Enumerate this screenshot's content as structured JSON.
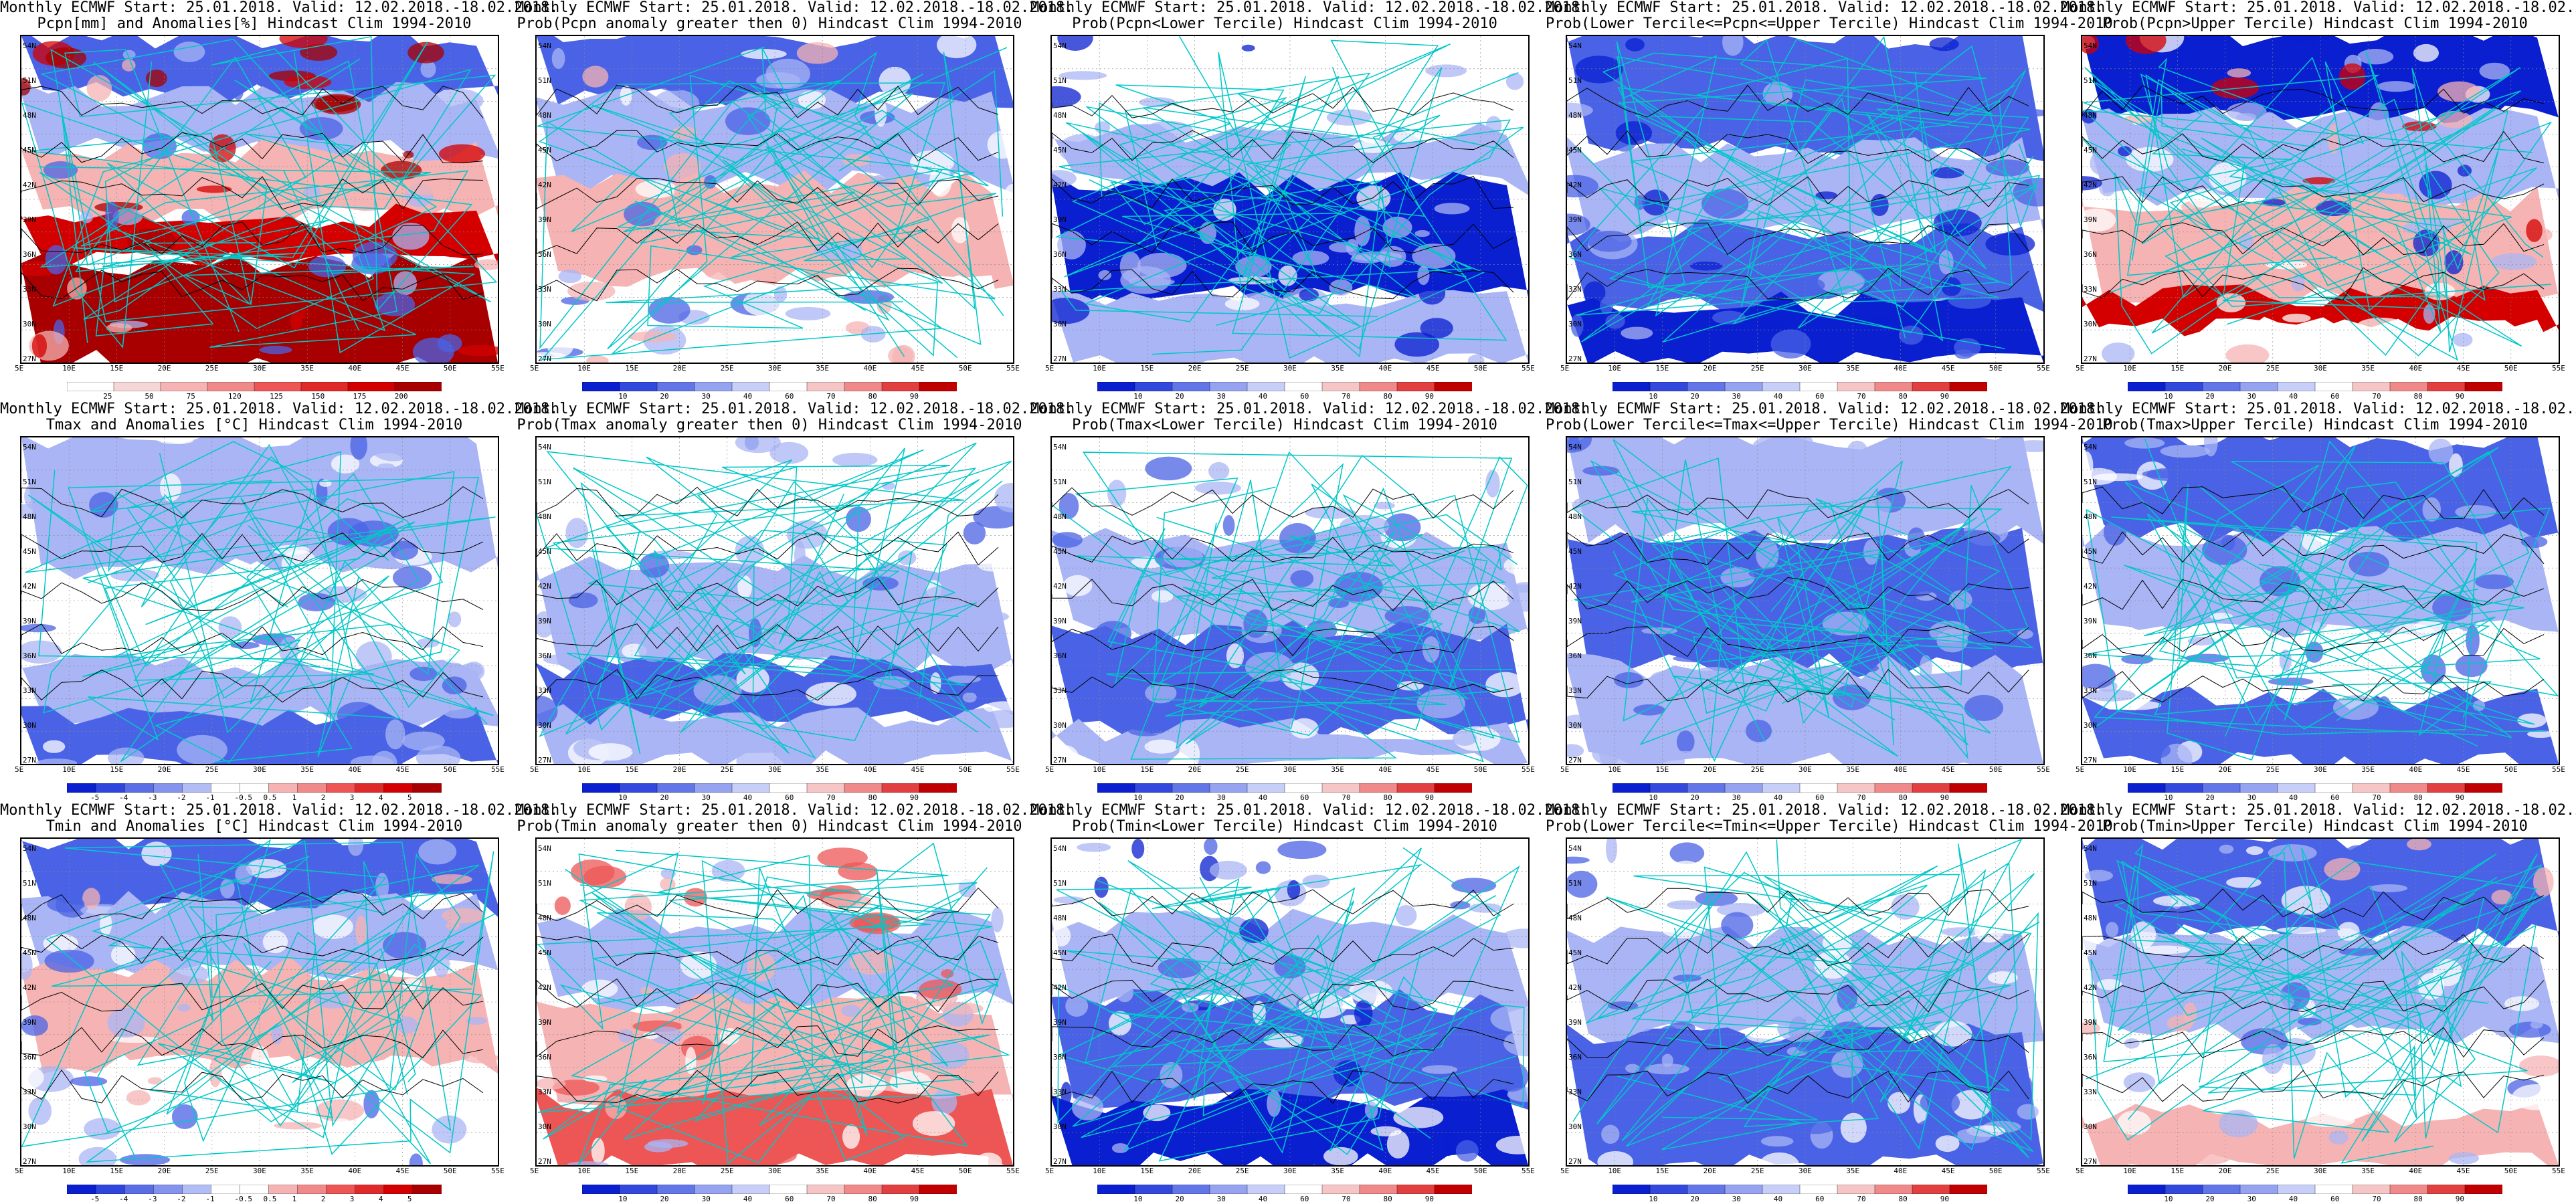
{
  "header": "Monthly ECMWF Start: 25.01.2018. Valid: 12.02.2018.-18.02.2018.",
  "lat_labels": [
    "54N",
    "51N",
    "48N",
    "45N",
    "42N",
    "39N",
    "36N",
    "33N",
    "30N",
    "27N"
  ],
  "lon_labels": [
    "5E",
    "10E",
    "15E",
    "20E",
    "25E",
    "30E",
    "35E",
    "40E",
    "45E",
    "50E",
    "55E"
  ],
  "anomaly_ticks": [
    "-5",
    "-4",
    "-3",
    "-2",
    "-1",
    "-0.5",
    "0.5",
    "1",
    "2",
    "3",
    "4",
    "5"
  ],
  "pcpn_ticks": [
    "25",
    "50",
    "75",
    "120",
    "125",
    "150",
    "175",
    "200"
  ],
  "prob_ticks": [
    "10",
    "20",
    "30",
    "40",
    "60",
    "70",
    "80",
    "90"
  ],
  "colors": {
    "deep_blue": "#0a1fd0",
    "mid_blue": "#4a63e6",
    "light_blue": "#a9b5f4",
    "white": "#ffffff",
    "light_red": "#f6b3b3",
    "mid_red": "#ee5555",
    "deep_red": "#d40000",
    "dark_red": "#a80000",
    "coast": "#00c8c8",
    "contour": "#000000"
  },
  "panels": [
    {
      "subtitle": "Pcpn[mm] and Anomalies[%] Hindcast Clim 1994-2010",
      "scale": "pcpn",
      "pattern": "pcpn_anom"
    },
    {
      "subtitle": "Prob(Pcpn anomaly greater then 0) Hindcast Clim 1994-2010",
      "scale": "prob",
      "pattern": "pcpn_gt0"
    },
    {
      "subtitle": "Prob(Pcpn<Lower Tercile) Hindcast Clim 1994-2010",
      "scale": "prob",
      "pattern": "pcpn_lower"
    },
    {
      "subtitle": "Prob(Lower Tercile<=Pcpn<=Upper Tercile) Hindcast Clim 1994-2010",
      "scale": "prob",
      "pattern": "pcpn_middle"
    },
    {
      "subtitle": "Prob(Pcpn>Upper Tercile) Hindcast Clim 1994-2010",
      "scale": "prob",
      "pattern": "pcpn_upper"
    },
    {
      "subtitle": "Tmax and Anomalies [°C] Hindcast Clim 1994-2010",
      "scale": "anomaly",
      "pattern": "tmax_anom"
    },
    {
      "subtitle": "Prob(Tmax anomaly greater then 0) Hindcast Clim 1994-2010",
      "scale": "prob",
      "pattern": "tmax_gt0"
    },
    {
      "subtitle": "Prob(Tmax<Lower Tercile) Hindcast Clim 1994-2010",
      "scale": "prob",
      "pattern": "tmax_lower"
    },
    {
      "subtitle": "Prob(Lower Tercile<=Tmax<=Upper Tercile) Hindcast Clim 1994-2010",
      "scale": "prob",
      "pattern": "tmax_middle"
    },
    {
      "subtitle": "Prob(Tmax>Upper Tercile) Hindcast Clim 1994-2010",
      "scale": "prob",
      "pattern": "tmax_upper"
    },
    {
      "subtitle": "Tmin and Anomalies [°C] Hindcast Clim 1994-2010",
      "scale": "anomaly",
      "pattern": "tmin_anom"
    },
    {
      "subtitle": "Prob(Tmin anomaly greater then 0) Hindcast Clim 1994-2010",
      "scale": "prob",
      "pattern": "tmin_gt0"
    },
    {
      "subtitle": "Prob(Tmin<Lower Tercile) Hindcast Clim 1994-2010",
      "scale": "prob",
      "pattern": "tmin_lower"
    },
    {
      "subtitle": "Prob(Lower Tercile<=Tmin<=Upper Tercile) Hindcast Clim 1994-2010",
      "scale": "prob",
      "pattern": "tmin_middle"
    },
    {
      "subtitle": "Prob(Tmin>Upper Tercile) Hindcast Clim 1994-2010",
      "scale": "prob",
      "pattern": "tmin_upper"
    }
  ]
}
